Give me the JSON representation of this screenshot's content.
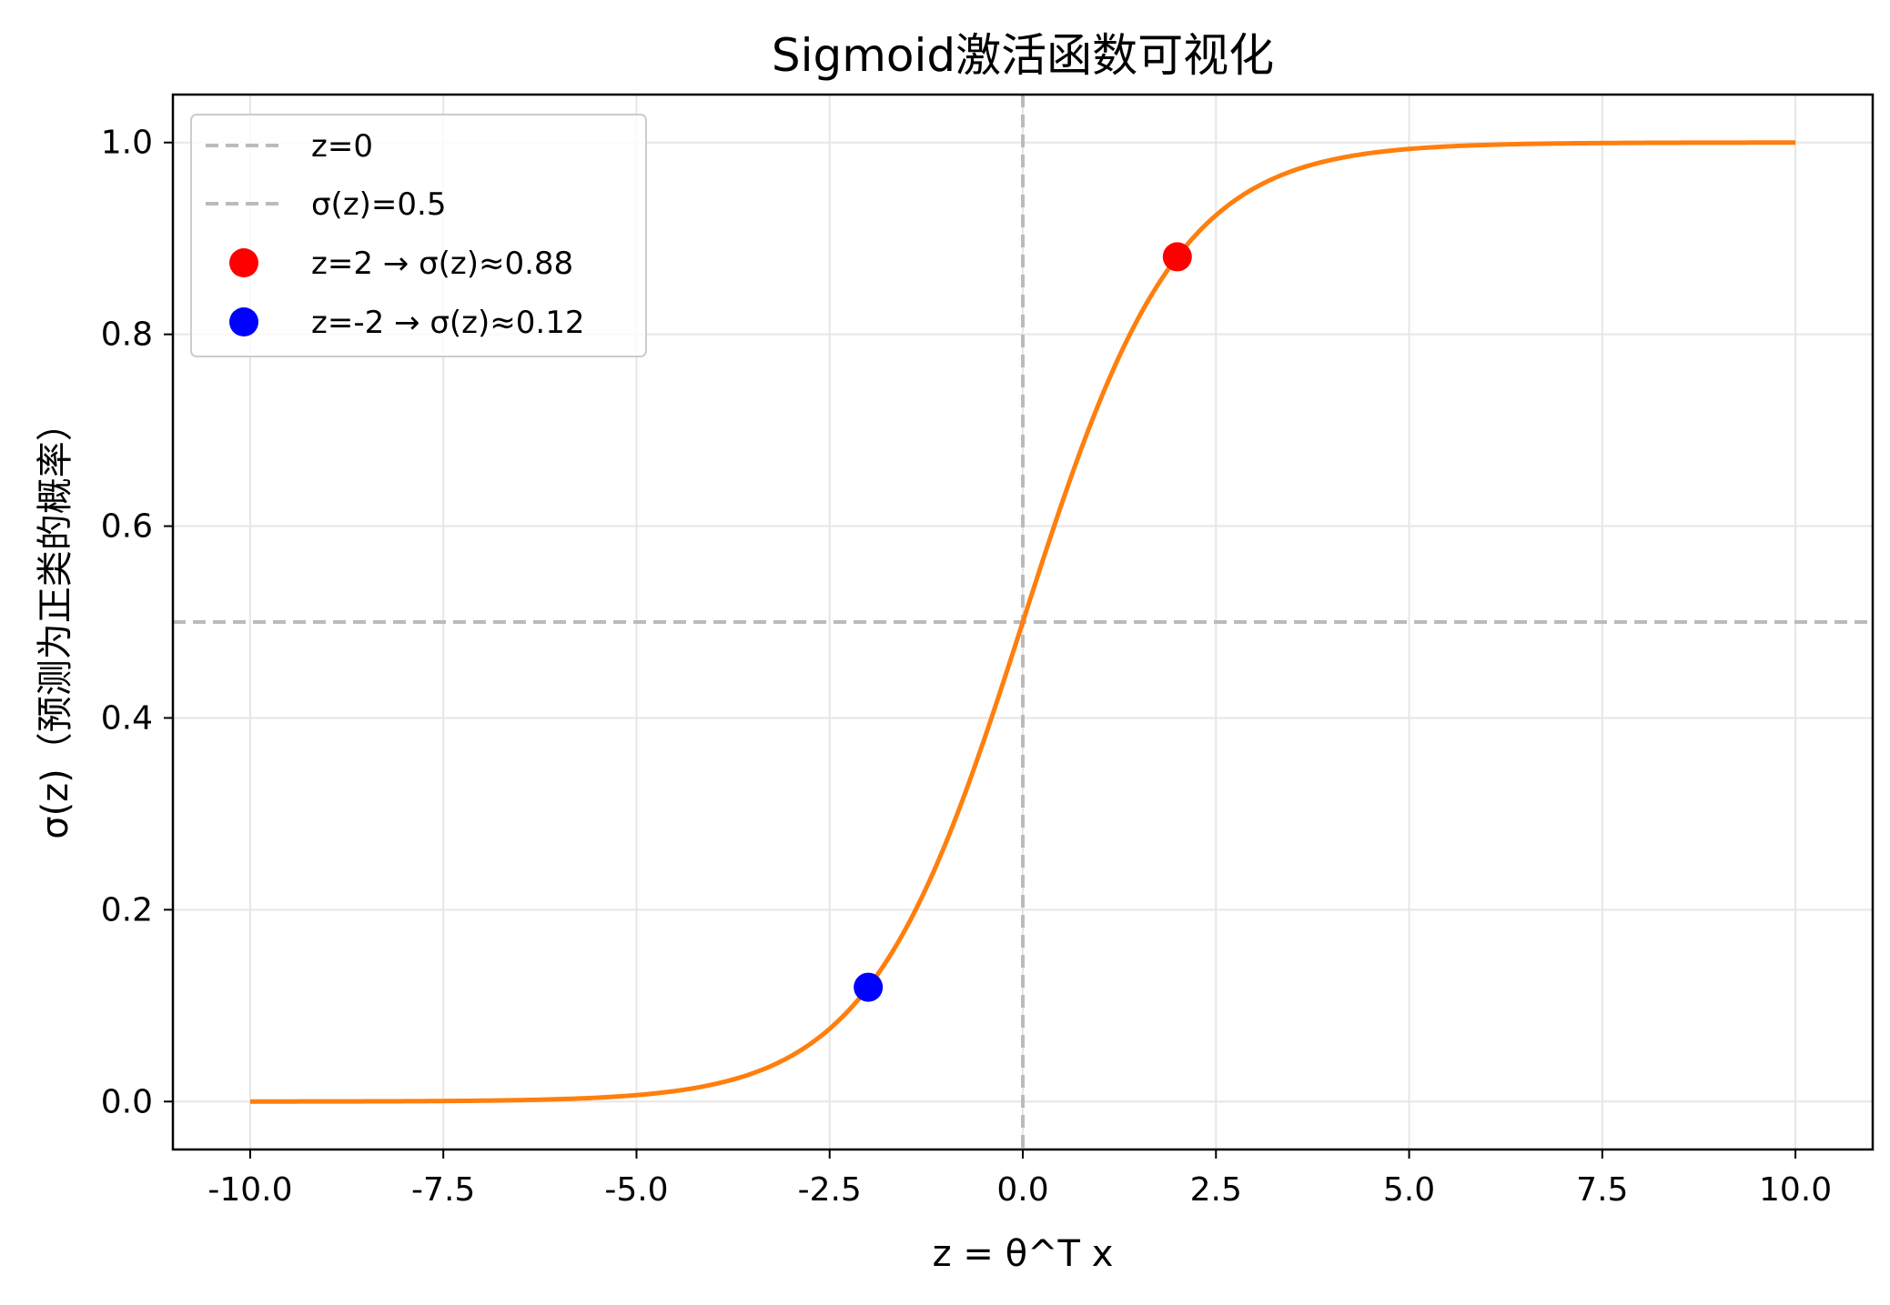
{
  "chart_data": {
    "type": "line",
    "title": "Sigmoid激活函数可视化",
    "xlabel": "z = θ^T x",
    "ylabel": "σ(z)（预测为正类的概率）",
    "xlim": [
      -11,
      11
    ],
    "ylim": [
      -0.05,
      1.05
    ],
    "x_ticks": [
      -10.0,
      -7.5,
      -5.0,
      -2.5,
      0.0,
      2.5,
      5.0,
      7.5,
      10.0
    ],
    "x_tick_labels": [
      "-10.0",
      "-7.5",
      "-5.0",
      "-2.5",
      "0.0",
      "2.5",
      "5.0",
      "7.5",
      "10.0"
    ],
    "y_ticks": [
      0.0,
      0.2,
      0.4,
      0.6,
      0.8,
      1.0
    ],
    "y_tick_labels": [
      "0.0",
      "0.2",
      "0.4",
      "0.6",
      "0.8",
      "1.0"
    ],
    "grid": true,
    "legend_position": "top-left",
    "series": [
      {
        "function": "sigmoid",
        "color": "#ff7f0e",
        "x": [
          -10,
          -9,
          -8,
          -7,
          -6,
          -5,
          -4.5,
          -4,
          -3.5,
          -3,
          -2.5,
          -2,
          -1.75,
          -1.5,
          -1.25,
          -1,
          -0.75,
          -0.5,
          -0.25,
          0,
          0.25,
          0.5,
          0.75,
          1,
          1.25,
          1.5,
          1.75,
          2,
          2.5,
          3,
          3.5,
          4,
          4.5,
          5,
          6,
          7,
          8,
          9,
          10
        ],
        "y": [
          5e-05,
          0.00012,
          0.00034,
          0.00091,
          0.00247,
          0.00669,
          0.01099,
          0.01799,
          0.02931,
          0.04743,
          0.07586,
          0.1192,
          0.148,
          0.1824,
          0.2227,
          0.2689,
          0.3208,
          0.3775,
          0.4378,
          0.5,
          0.5622,
          0.6225,
          0.6792,
          0.7311,
          0.7773,
          0.8176,
          0.852,
          0.8808,
          0.9241,
          0.9526,
          0.9707,
          0.982,
          0.989,
          0.9933,
          0.9975,
          0.9991,
          0.9997,
          0.9999,
          1.0
        ]
      }
    ],
    "reference_lines": [
      {
        "name": "z=0",
        "orientation": "vertical",
        "value": 0,
        "color": "#bbbbbb",
        "style": "dashed"
      },
      {
        "name": "σ(z)=0.5",
        "orientation": "horizontal",
        "value": 0.5,
        "color": "#bbbbbb",
        "style": "dashed"
      }
    ],
    "points": [
      {
        "name": "z=2 → σ(z)≈0.88",
        "x": 2,
        "y": 0.8808,
        "color": "#ff0000"
      },
      {
        "name": "z=-2 → σ(z)≈0.12",
        "x": -2,
        "y": 0.1192,
        "color": "#0000ff"
      }
    ],
    "colors": {
      "grid": "#e6e6e6",
      "axes": "#000000",
      "legend_border": "#cccccc"
    }
  }
}
